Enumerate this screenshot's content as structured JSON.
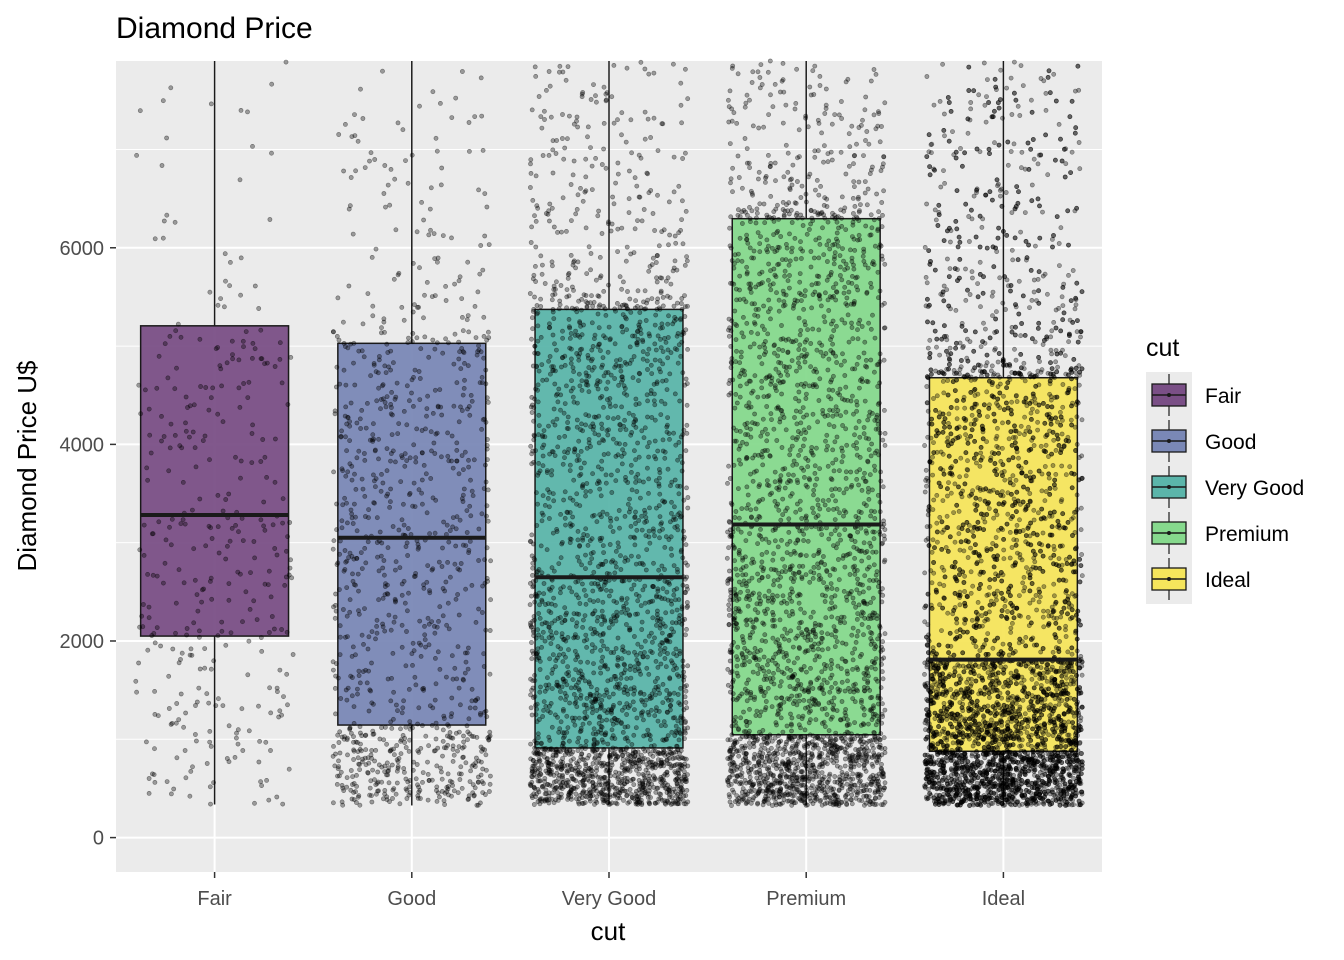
{
  "chart_data": {
    "type": "boxplot",
    "title": "Diamond Price",
    "xlabel": "cut",
    "ylabel": "Diamond Price U$",
    "categories": [
      "Fair",
      "Good",
      "Very Good",
      "Premium",
      "Ideal"
    ],
    "ylim": [
      -350,
      7900
    ],
    "y_ticks": [
      0,
      2000,
      4000,
      6000
    ],
    "grid": true,
    "legend": {
      "title": "cut",
      "position": "right",
      "entries": [
        "Fair",
        "Good",
        "Very Good",
        "Premium",
        "Ideal"
      ]
    },
    "colors": [
      "#7a4f86",
      "#7a88b6",
      "#5bb5aa",
      "#86d98d",
      "#f5e55c"
    ],
    "boxes": [
      {
        "name": "Fair",
        "min": 337,
        "q1": 2050,
        "median": 3282,
        "q3": 5206
      },
      {
        "name": "Good",
        "min": 327,
        "q1": 1145,
        "median": 3050,
        "q3": 5028
      },
      {
        "name": "Very Good",
        "min": 336,
        "q1": 912,
        "median": 2648,
        "q3": 5373
      },
      {
        "name": "Premium",
        "min": 326,
        "q1": 1046,
        "median": 3185,
        "q3": 6296
      },
      {
        "name": "Ideal",
        "min": 326,
        "q1": 878,
        "median": 1810,
        "q3": 4678
      }
    ],
    "jitter_points_approx": [
      1600,
      4900,
      12000,
      13800,
      21500
    ]
  }
}
